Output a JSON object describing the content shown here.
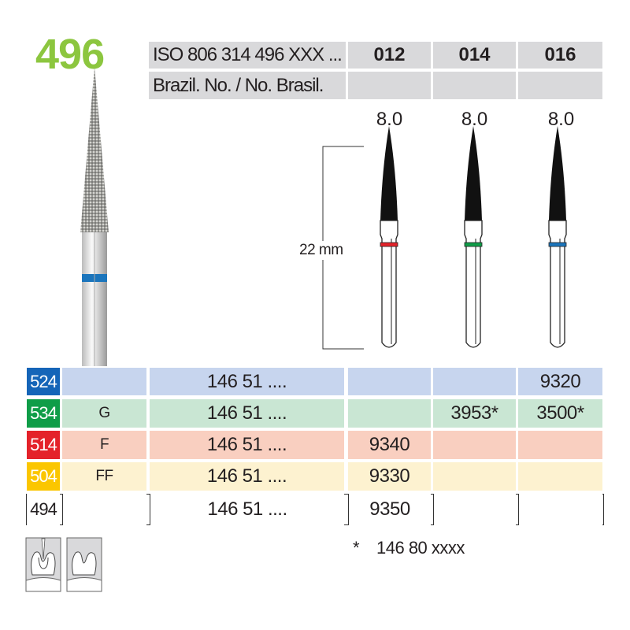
{
  "product_number": "496",
  "header": {
    "iso_label": "ISO 806 314 496 XXX ...",
    "brazil_label": "Brazil. No. / No. Brasil.",
    "sizes": [
      "012",
      "014",
      "016"
    ],
    "brazil_values": [
      "",
      "",
      ""
    ],
    "lengths": [
      "8.0",
      "8.0",
      "8.0"
    ]
  },
  "dimension_label": "22 mm",
  "bur_ring_colors": [
    "#e4222a",
    "#0f9d48",
    "#1b75bc"
  ],
  "rows": [
    {
      "code": "524",
      "grit": "",
      "ref": "146 51 ....",
      "values": [
        "",
        "",
        "9320"
      ],
      "code_color": "#1565b8",
      "row_color": "#c7d5ee"
    },
    {
      "code": "534",
      "grit": "G",
      "ref": "146 51 ....",
      "values": [
        "",
        "3953*",
        "3500*"
      ],
      "code_color": "#0f9d48",
      "row_color": "#c9e6d3"
    },
    {
      "code": "514",
      "grit": "F",
      "ref": "146 51 ....",
      "values": [
        "9340",
        "",
        ""
      ],
      "code_color": "#e4222a",
      "row_color": "#f9cfc0"
    },
    {
      "code": "504",
      "grit": "FF",
      "ref": "146 51 ....",
      "values": [
        "9330",
        "",
        ""
      ],
      "code_color": "#fbc600",
      "row_color": "#fdf2d0"
    },
    {
      "code": "494",
      "grit": "",
      "ref": "146 51 ....",
      "values": [
        "9350",
        "",
        ""
      ],
      "code_color": "#ffffff",
      "row_color": "#ffffff"
    }
  ],
  "footnote": {
    "marker": "*",
    "text": "146 80 xxxx"
  },
  "application_icons": [
    "tooth-preparation-with-bur-icon",
    "tooth-preparation-result-icon"
  ]
}
